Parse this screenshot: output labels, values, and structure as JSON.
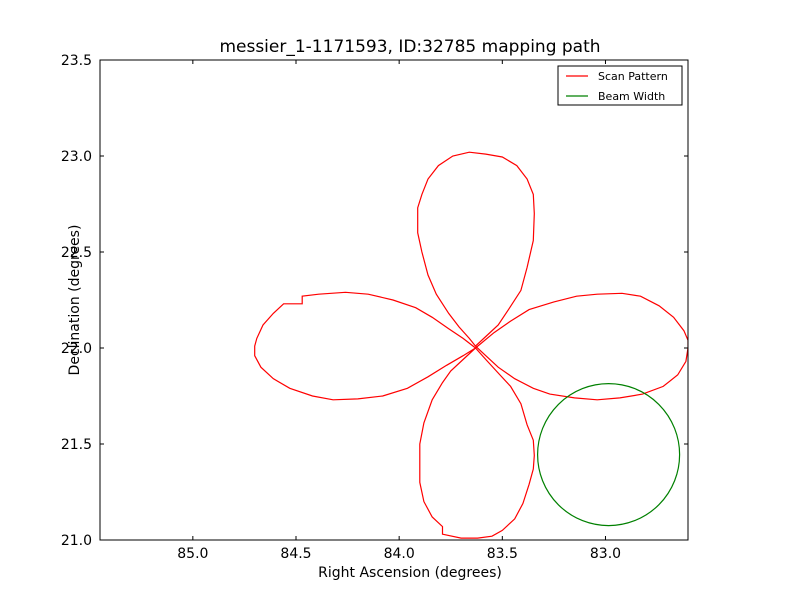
{
  "chart_data": {
    "type": "line",
    "title": "messier_1-1171593, ID:32785 mapping path",
    "xlabel": "Right Ascension (degrees)",
    "ylabel": "Declination (degrees)",
    "xlim": [
      85.45,
      82.6
    ],
    "ylim": [
      21.0,
      23.5
    ],
    "x_ticks": [
      85.0,
      84.5,
      84.0,
      83.5,
      83.0
    ],
    "x_tick_labels": [
      "85.0",
      "84.5",
      "84.0",
      "83.5",
      "83.0"
    ],
    "y_ticks": [
      21.0,
      21.5,
      22.0,
      22.5,
      23.0,
      23.5
    ],
    "y_tick_labels": [
      "21.0",
      "21.5",
      "22.0",
      "22.5",
      "23.0",
      "23.5"
    ],
    "grid": false,
    "legend_position": "top-right",
    "series": [
      {
        "name": "Scan Pattern",
        "color": "#ff0000",
        "points": [
          [
            83.63,
            22.01
          ],
          [
            83.58,
            22.06
          ],
          [
            83.52,
            22.12
          ],
          [
            83.47,
            22.2
          ],
          [
            83.41,
            22.3
          ],
          [
            83.38,
            22.42
          ],
          [
            83.35,
            22.56
          ],
          [
            83.345,
            22.7
          ],
          [
            83.35,
            22.8
          ],
          [
            83.38,
            22.88
          ],
          [
            83.43,
            22.95
          ],
          [
            83.5,
            22.995
          ],
          [
            83.58,
            23.01
          ],
          [
            83.66,
            23.02
          ],
          [
            83.74,
            23.0
          ],
          [
            83.81,
            22.95
          ],
          [
            83.86,
            22.88
          ],
          [
            83.89,
            22.8
          ],
          [
            83.91,
            22.73
          ],
          [
            83.91,
            22.6
          ],
          [
            83.89,
            22.5
          ],
          [
            83.86,
            22.38
          ],
          [
            83.82,
            22.28
          ],
          [
            83.76,
            22.18
          ],
          [
            83.71,
            22.11
          ],
          [
            83.66,
            22.05
          ],
          [
            83.63,
            22.01
          ],
          [
            83.58,
            21.96
          ],
          [
            83.52,
            21.9
          ],
          [
            83.44,
            21.84
          ],
          [
            83.35,
            21.79
          ],
          [
            83.27,
            21.76
          ],
          [
            83.15,
            21.74
          ],
          [
            83.04,
            21.73
          ],
          [
            82.93,
            21.74
          ],
          [
            82.82,
            21.76
          ],
          [
            82.72,
            21.8
          ],
          [
            82.65,
            21.86
          ],
          [
            82.61,
            21.93
          ],
          [
            82.6,
            22.0
          ],
          [
            82.6,
            22.04
          ],
          [
            82.62,
            22.09
          ],
          [
            82.67,
            22.16
          ],
          [
            82.74,
            22.22
          ],
          [
            82.83,
            22.27
          ],
          [
            82.92,
            22.285
          ],
          [
            83.04,
            22.28
          ],
          [
            83.14,
            22.27
          ],
          [
            83.25,
            22.24
          ],
          [
            83.37,
            22.2
          ],
          [
            83.46,
            22.14
          ],
          [
            83.54,
            22.08
          ],
          [
            83.63,
            22.0
          ],
          [
            83.69,
            21.94
          ],
          [
            83.75,
            21.88
          ],
          [
            83.79,
            21.82
          ],
          [
            83.84,
            21.73
          ],
          [
            83.88,
            21.61
          ],
          [
            83.9,
            21.5
          ],
          [
            83.9,
            21.38
          ],
          [
            83.9,
            21.3
          ],
          [
            83.88,
            21.2
          ],
          [
            83.84,
            21.12
          ],
          [
            83.79,
            21.07
          ],
          [
            83.79,
            21.03
          ],
          [
            83.7,
            21.01
          ],
          [
            83.62,
            21.01
          ],
          [
            83.55,
            21.02
          ],
          [
            83.5,
            21.05
          ],
          [
            83.44,
            21.11
          ],
          [
            83.4,
            21.19
          ],
          [
            83.37,
            21.29
          ],
          [
            83.35,
            21.37
          ],
          [
            83.345,
            21.44
          ],
          [
            83.35,
            21.52
          ],
          [
            83.38,
            21.6
          ],
          [
            83.41,
            21.71
          ],
          [
            83.46,
            21.8
          ],
          [
            83.52,
            21.87
          ],
          [
            83.58,
            21.94
          ],
          [
            83.63,
            22.0
          ],
          [
            83.69,
            22.05
          ],
          [
            83.76,
            22.1
          ],
          [
            83.84,
            22.16
          ],
          [
            83.92,
            22.21
          ],
          [
            84.03,
            22.25
          ],
          [
            84.15,
            22.28
          ],
          [
            84.26,
            22.29
          ],
          [
            84.39,
            22.28
          ],
          [
            84.47,
            22.27
          ],
          [
            84.47,
            22.23
          ],
          [
            84.56,
            22.23
          ],
          [
            84.61,
            22.18
          ],
          [
            84.66,
            22.12
          ],
          [
            84.69,
            22.05
          ],
          [
            84.7,
            22.01
          ],
          [
            84.7,
            21.96
          ],
          [
            84.67,
            21.9
          ],
          [
            84.61,
            21.84
          ],
          [
            84.53,
            21.79
          ],
          [
            84.42,
            21.75
          ],
          [
            84.32,
            21.73
          ],
          [
            84.2,
            21.735
          ],
          [
            84.08,
            21.75
          ],
          [
            83.96,
            21.79
          ],
          [
            83.86,
            21.85
          ],
          [
            83.77,
            21.91
          ],
          [
            83.69,
            21.96
          ],
          [
            83.63,
            22.0
          ]
        ]
      },
      {
        "name": "Beam Width",
        "color": "#008000",
        "circle": {
          "center": [
            82.985,
            21.445
          ],
          "radius": 0.37
        }
      }
    ]
  }
}
